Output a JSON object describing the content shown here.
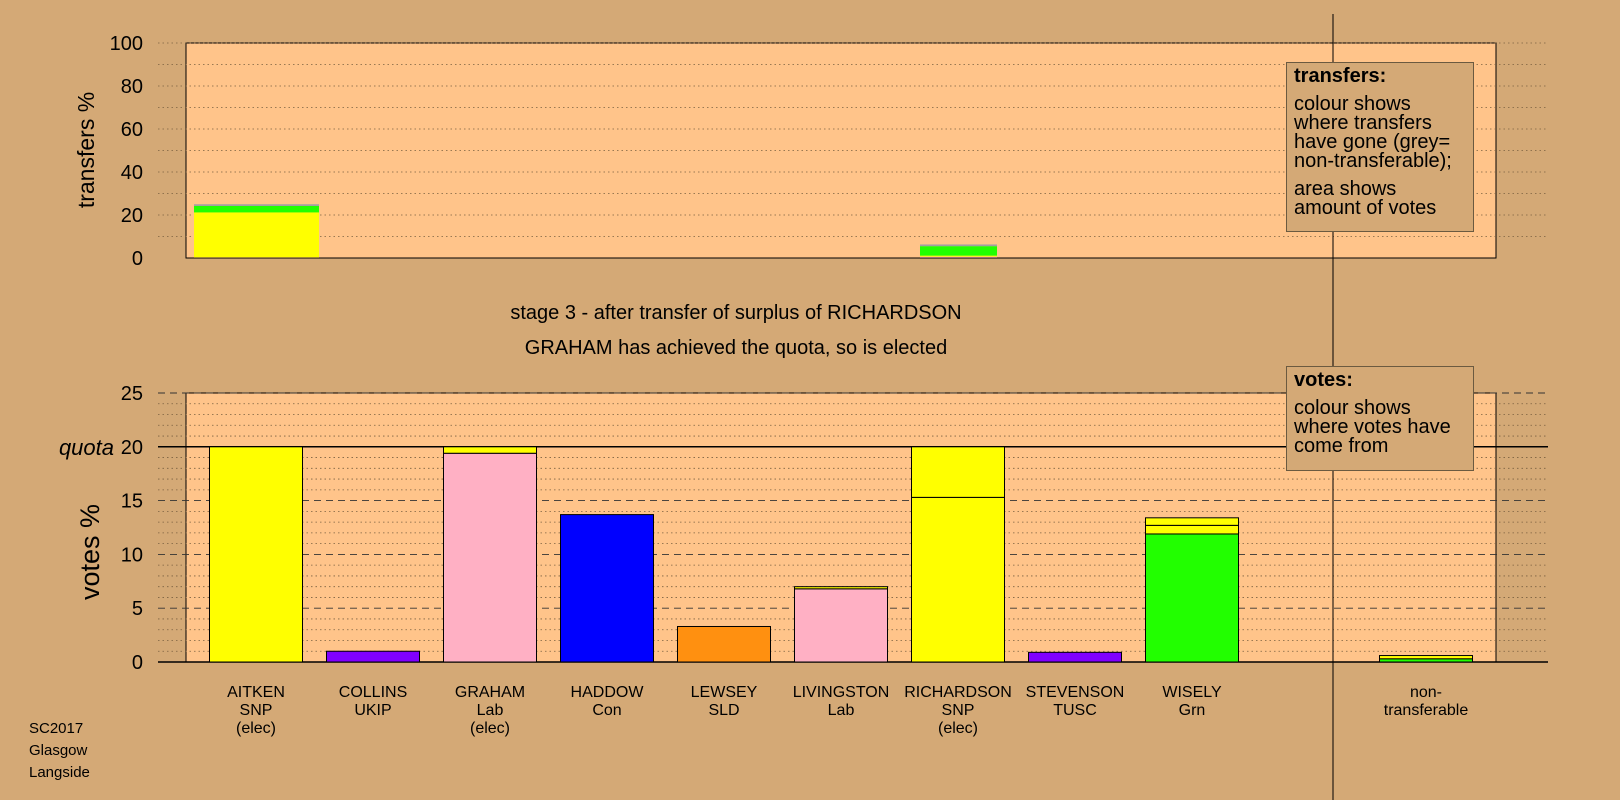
{
  "source": [
    "SC2017",
    "Glasgow",
    "Langside"
  ],
  "stage_title": "stage 3 - after transfer of surplus of RICHARDSON",
  "stage_subtitle": "GRAHAM has achieved the quota, so is elected",
  "quota_label": "quota",
  "legend_transfers": {
    "title": "transfers:",
    "line1": "colour shows where transfers have gone (grey= non-transferable);",
    "line2": "area shows amount of votes"
  },
  "legend_votes": {
    "title": "votes:",
    "line1": "colour shows where votes have come from"
  },
  "colors": {
    "background": "#d4a976",
    "plot": "#ffc48a",
    "SNP": "#ffff00",
    "Lab": "#ffb0c4",
    "Con": "#0000ff",
    "SLD": "#ff9010",
    "UKIP": "#8000ff",
    "TUSC": "#8000ff",
    "Grn": "#22ff00",
    "non-transferable": "#a0a0a0"
  },
  "chart_data": [
    {
      "type": "bar",
      "stacked": true,
      "ylabel": "transfers %",
      "ylim": [
        0,
        100
      ],
      "yticks": [
        0,
        20,
        40,
        60,
        80,
        100
      ],
      "grid": "dotted",
      "bars": [
        {
          "candidate": "AITKEN",
          "segments": [
            {
              "party": "Lab",
              "value": 0.3
            },
            {
              "party": "SNP",
              "value": 0.4
            },
            {
              "party": "SNP",
              "value": 20.5
            },
            {
              "party": "Grn",
              "value": 3.0
            },
            {
              "party": "non-transferable",
              "value": 0.8
            }
          ]
        },
        {
          "candidate": "RICHARDSON",
          "segments": [
            {
              "party": "Lab",
              "value": 0.6
            },
            {
              "party": "SNP",
              "value": 0.5
            },
            {
              "party": "Grn",
              "value": 4.4
            },
            {
              "party": "non-transferable",
              "value": 0.8
            }
          ]
        }
      ]
    },
    {
      "type": "bar",
      "stacked": true,
      "ylabel": "votes %",
      "ylim": [
        0,
        25
      ],
      "yticks": [
        0,
        5,
        10,
        15,
        20,
        25
      ],
      "quota": 20,
      "grid": "dashed",
      "categories": [
        [
          "AITKEN",
          "SNP",
          "(elec)"
        ],
        [
          "COLLINS",
          "UKIP"
        ],
        [
          "GRAHAM",
          "Lab",
          "(elec)"
        ],
        [
          "HADDOW",
          "Con"
        ],
        [
          "LEWSEY",
          "SLD"
        ],
        [
          "LIVINGSTON",
          "Lab"
        ],
        [
          "RICHARDSON",
          "SNP",
          "(elec)"
        ],
        [
          "STEVENSON",
          "TUSC"
        ],
        [
          "WISELY",
          "Grn"
        ],
        [
          "non-",
          "transferable"
        ]
      ],
      "bars": [
        [
          {
            "party": "SNP",
            "value": 20.0
          }
        ],
        [
          {
            "party": "UKIP",
            "value": 1.0
          }
        ],
        [
          {
            "party": "Lab",
            "value": 19.4
          },
          {
            "party": "SNP",
            "value": 0.6
          }
        ],
        [
          {
            "party": "Con",
            "value": 13.7
          }
        ],
        [
          {
            "party": "SLD",
            "value": 3.3
          }
        ],
        [
          {
            "party": "Lab",
            "value": 6.8
          },
          {
            "party": "SNP",
            "value": 0.2
          }
        ],
        [
          {
            "party": "SNP",
            "value": 15.3
          },
          {
            "party": "SNP",
            "value": 4.7
          }
        ],
        [
          {
            "party": "TUSC",
            "value": 0.9
          }
        ],
        [
          {
            "party": "Grn",
            "value": 11.9
          },
          {
            "party": "SNP",
            "value": 0.8
          },
          {
            "party": "SNP",
            "value": 0.7
          }
        ],
        [
          {
            "party": "Grn",
            "value": 0.3
          },
          {
            "party": "SNP",
            "value": 0.3
          }
        ]
      ]
    }
  ]
}
